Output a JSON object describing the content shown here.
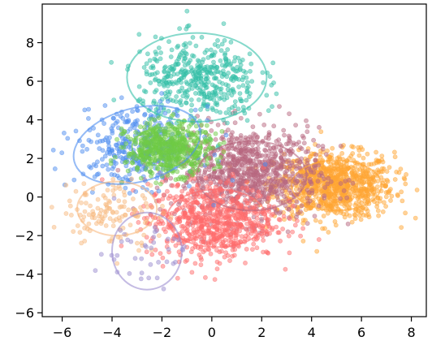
{
  "chart_data": {
    "type": "scatter",
    "title": "",
    "xlabel": "",
    "ylabel": "",
    "xlim": [
      -6.8,
      8.6
    ],
    "ylim": [
      -6.2,
      10.0
    ],
    "x_ticks": [
      -6,
      -4,
      -2,
      0,
      2,
      4,
      6,
      8
    ],
    "y_ticks": [
      -6,
      -4,
      -2,
      0,
      2,
      4,
      6,
      8
    ],
    "x_tick_labels": [
      "−6",
      "−4",
      "−2",
      "0",
      "2",
      "4",
      "6",
      "8"
    ],
    "y_tick_labels": [
      "−6",
      "−4",
      "−2",
      "0",
      "2",
      "4",
      "6",
      "8"
    ],
    "grid": false,
    "legend": "none",
    "series": [
      {
        "color": "#ffa533",
        "center": [
          4.9,
          0.6
        ],
        "spread": [
          1.2,
          0.85
        ],
        "points": 900
      },
      {
        "color": "#b8677f",
        "center": [
          1.5,
          1.2
        ],
        "spread": [
          1.4,
          1.2
        ],
        "points": 900
      },
      {
        "color": "#ff6c6c",
        "center": [
          0.0,
          -1.2
        ],
        "spread": [
          1.3,
          1.0
        ],
        "points": 700
      },
      {
        "color": "#34bfa8",
        "center": [
          -0.5,
          6.0
        ],
        "spread": [
          1.2,
          1.1
        ],
        "points": 450
      },
      {
        "color": "#4f8ef0",
        "center": [
          -3.0,
          2.6
        ],
        "spread": [
          1.2,
          1.0
        ],
        "points": 350
      },
      {
        "color": "#6fcb45",
        "center": [
          -1.7,
          2.5
        ],
        "spread": [
          0.85,
          0.65
        ],
        "points": 550
      },
      {
        "color": "#f8b980",
        "center": [
          -4.0,
          -0.8
        ],
        "spread": [
          1.0,
          0.9
        ],
        "points": 130
      },
      {
        "color": "#9c8ed0",
        "center": [
          -2.8,
          -2.8
        ],
        "spread": [
          0.9,
          0.9
        ],
        "points": 40
      }
    ],
    "ellipses": [
      {
        "color": "#34bfa8",
        "center": [
          -0.6,
          6.2
        ],
        "radii": [
          2.8,
          2.3
        ],
        "angle": 0
      },
      {
        "color": "#4f8ef0",
        "center": [
          -3.0,
          2.7
        ],
        "radii": [
          2.6,
          1.9
        ],
        "angle": 15
      },
      {
        "color": "#6fcb45",
        "center": [
          -1.8,
          2.6
        ],
        "radii": [
          1.4,
          1.0
        ],
        "angle": 0
      },
      {
        "color": "#b8677f",
        "center": [
          1.6,
          1.1
        ],
        "radii": [
          2.2,
          1.8
        ],
        "angle": 0
      },
      {
        "color": "#ff6c6c",
        "center": [
          0.2,
          -1.1
        ],
        "radii": [
          2.0,
          1.5
        ],
        "angle": 0
      },
      {
        "color": "#ffa533",
        "center": [
          5.0,
          0.6
        ],
        "radii": [
          1.8,
          1.3
        ],
        "angle": 0
      },
      {
        "color": "#f8b980",
        "center": [
          -3.8,
          -0.6
        ],
        "radii": [
          1.6,
          1.4
        ],
        "angle": 0
      },
      {
        "color": "#9c8ed0",
        "center": [
          -2.6,
          -2.8
        ],
        "radii": [
          1.4,
          2.0
        ],
        "angle": 0
      }
    ]
  }
}
